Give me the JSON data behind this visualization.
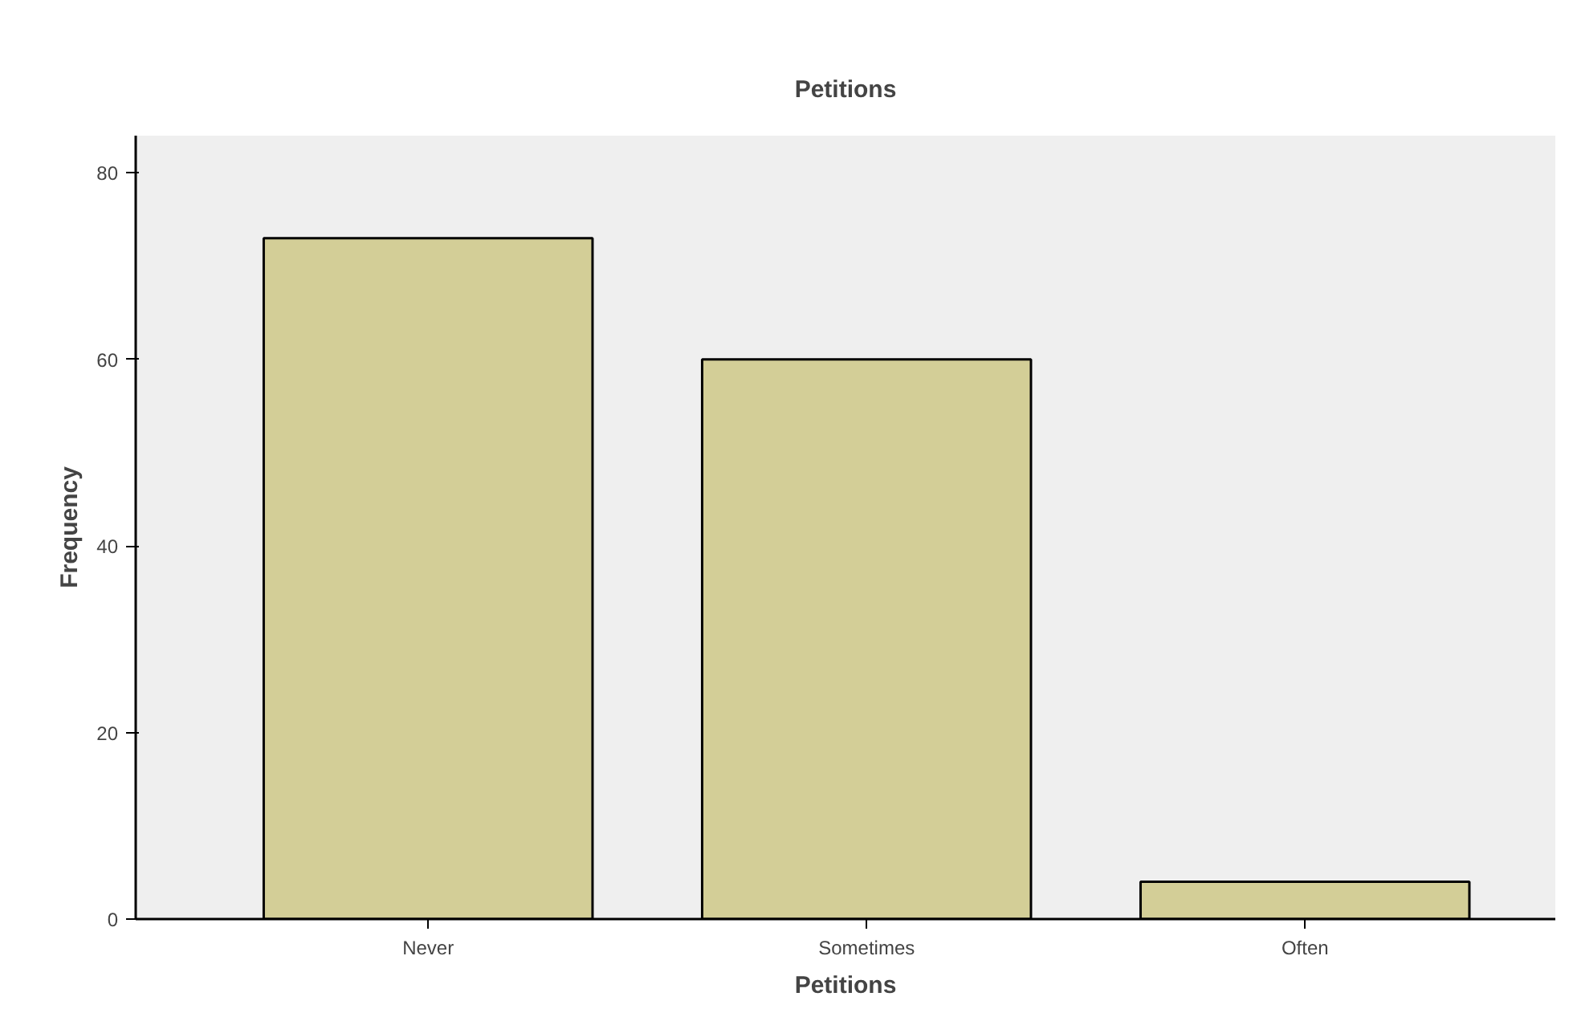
{
  "chart_data": {
    "type": "bar",
    "title": "Petitions",
    "xlabel": "Petitions",
    "ylabel": "Frequency",
    "categories": [
      "Never",
      "Sometimes",
      "Often"
    ],
    "values": [
      73,
      60,
      4
    ],
    "color": "#d3ce97",
    "ylim": [
      0,
      84
    ],
    "yticks": [
      0,
      20,
      40,
      60,
      80
    ],
    "grid": false
  }
}
